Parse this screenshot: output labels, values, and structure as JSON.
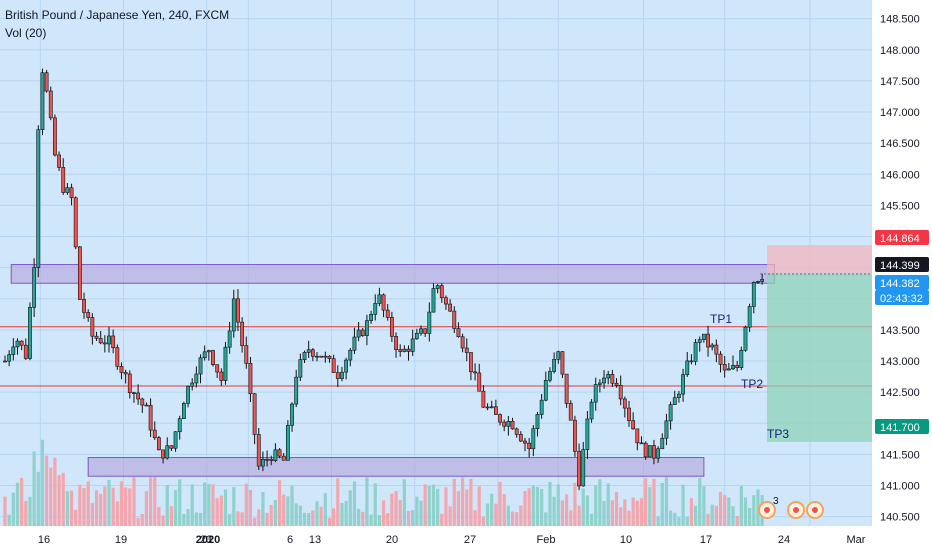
{
  "chart_data": {
    "type": "candlestick",
    "title": "British Pound / Japanese Yen, 240, FXCM",
    "indicator_label": "Vol (20)",
    "y_ticks": [
      140.5,
      141.0,
      141.5,
      142.0,
      142.5,
      143.0,
      143.5,
      144.0,
      144.5,
      145.0,
      145.5,
      146.0,
      146.5,
      147.0,
      147.5,
      148.0,
      148.5
    ],
    "y_tick_labels": [
      "140.500",
      "141.000",
      "141.500",
      "142.000",
      "142.500",
      "143.000",
      "143.500",
      "144.000",
      "144.500",
      "145.000",
      "145.500",
      "146.000",
      "146.500",
      "147.000",
      "147.500",
      "148.000",
      "148.500"
    ],
    "ylim": [
      140.35,
      148.8
    ],
    "x_tick_labels": [
      "16",
      "19",
      "23",
      "2020",
      "6",
      "13",
      "20",
      "27",
      "Feb",
      "10",
      "17",
      "24",
      "Mar"
    ],
    "price_path": [
      [
        0,
        143.0
      ],
      [
        0.5,
        143.4
      ],
      [
        1.0,
        143.1
      ],
      [
        1.4,
        144.6
      ],
      [
        1.7,
        147.9
      ],
      [
        2.0,
        147.3
      ],
      [
        2.4,
        146.3
      ],
      [
        2.8,
        145.8
      ],
      [
        3.2,
        145.6
      ],
      [
        3.6,
        144.0
      ],
      [
        4.2,
        143.4
      ],
      [
        5.0,
        143.3
      ],
      [
        6.0,
        142.6
      ],
      [
        6.8,
        142.2
      ],
      [
        7.4,
        141.5
      ],
      [
        8.0,
        141.6
      ],
      [
        8.6,
        142.4
      ],
      [
        9.2,
        142.9
      ],
      [
        9.8,
        143.2
      ],
      [
        10.4,
        142.7
      ],
      [
        11.0,
        144.0
      ],
      [
        11.6,
        142.9
      ],
      [
        12.2,
        141.3
      ],
      [
        12.8,
        141.5
      ],
      [
        13.4,
        141.4
      ],
      [
        14.0,
        142.8
      ],
      [
        14.6,
        143.2
      ],
      [
        15.2,
        143.1
      ],
      [
        16.0,
        142.8
      ],
      [
        16.8,
        143.3
      ],
      [
        17.4,
        143.6
      ],
      [
        17.9,
        144.1
      ],
      [
        18.4,
        143.6
      ],
      [
        19.0,
        143.1
      ],
      [
        19.6,
        143.3
      ],
      [
        20.2,
        143.5
      ],
      [
        20.7,
        144.3
      ],
      [
        21.2,
        143.9
      ],
      [
        21.8,
        143.5
      ],
      [
        22.4,
        142.9
      ],
      [
        23.0,
        142.3
      ],
      [
        23.6,
        142.1
      ],
      [
        24.4,
        142.0
      ],
      [
        25.2,
        141.6
      ],
      [
        26.0,
        142.7
      ],
      [
        26.6,
        143.1
      ],
      [
        27.2,
        142.0
      ],
      [
        27.6,
        141.1
      ],
      [
        28.2,
        142.4
      ],
      [
        28.8,
        142.8
      ],
      [
        29.4,
        142.7
      ],
      [
        30.0,
        142.1
      ],
      [
        30.6,
        141.6
      ],
      [
        31.2,
        141.5
      ],
      [
        32.0,
        142.2
      ],
      [
        32.8,
        142.9
      ],
      [
        33.4,
        143.4
      ],
      [
        34.0,
        143.2
      ],
      [
        34.6,
        142.8
      ],
      [
        35.2,
        142.9
      ],
      [
        35.6,
        143.6
      ],
      [
        36.0,
        144.3
      ],
      [
        36.4,
        144.4
      ]
    ],
    "volume_note": "volume histogram bars along the bottom, green/red by candle direction",
    "levels": [
      {
        "name": "resistance-zone",
        "y_low": 144.25,
        "y_high": 144.55,
        "x_start": 0.3,
        "x_end": 37.0
      },
      {
        "name": "support-zone",
        "y_low": 141.15,
        "y_high": 141.45,
        "x_start": 4.0,
        "x_end": 33.6
      },
      {
        "name": "TP1 line",
        "y": 143.55
      },
      {
        "name": "TP2 line",
        "y": 142.6
      }
    ],
    "annotations": {
      "tp1": {
        "text": "TP1",
        "y": 143.55
      },
      "tp2": {
        "text": "TP2",
        "y": 142.5
      },
      "tp3": {
        "text": "TP3",
        "y": 141.7
      }
    },
    "position": {
      "entry": 144.399,
      "stop": 144.864,
      "target": 141.7
    },
    "price_labels": [
      {
        "text": "144.864",
        "value": 144.864,
        "bg": "#f23645"
      },
      {
        "text": "144.399",
        "value": 144.399,
        "bg": "#131722"
      },
      {
        "text": "144.382",
        "value": 144.382,
        "bg": "#2196f3"
      },
      {
        "text": "02:43:32",
        "value": 144.1,
        "bg": "#2196f3"
      },
      {
        "text": "141.700",
        "value": 141.7,
        "bg": "#089981"
      }
    ],
    "event_badge": "3",
    "colors": {
      "background": "#cfe6fb",
      "up": "#26a69a",
      "down": "#ef5350",
      "zone_fill": "#b39ddb",
      "zone_stroke": "#7e57c2",
      "level_line": "#e53935",
      "tp_text": "#1a237e",
      "stop_fill": "#f3b6bf",
      "target_fill": "#8fd3b8",
      "grid": "#b7d5f1"
    }
  }
}
